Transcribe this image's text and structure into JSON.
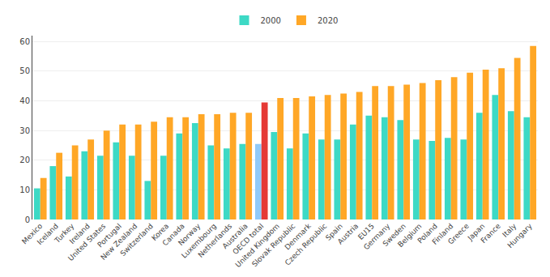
{
  "chart_data": {
    "type": "bar",
    "categories": [
      "Mexico",
      "Iceland",
      "Turkey",
      "Ireland",
      "United States",
      "Portugal",
      "New Zealand",
      "Switzerland",
      "Korea",
      "Canada",
      "Norway",
      "Luxembourg",
      "Netherlands",
      "Australia",
      "OECD total",
      "United Kingdom",
      "Slovak Republic",
      "Denmark",
      "Czech Republic",
      "Spain",
      "Austria",
      "EU15",
      "Germany",
      "Sweden",
      "Belgium",
      "Poland",
      "Finland",
      "Greece",
      "Japan",
      "France",
      "Italy",
      "Hungary"
    ],
    "series": [
      {
        "name": "2000",
        "values": [
          10.5,
          18.0,
          14.5,
          23.0,
          21.5,
          26.0,
          21.5,
          13.0,
          21.5,
          29.0,
          32.5,
          25.0,
          24.0,
          25.5,
          25.5,
          29.5,
          24.0,
          29.0,
          27.0,
          27.0,
          32.0,
          35.0,
          34.5,
          33.5,
          27.0,
          26.5,
          27.5,
          27.0,
          36.0,
          42.0,
          36.5,
          34.5
        ],
        "colors": [
          "#3DD9C5",
          "#3DD9C5",
          "#3DD9C5",
          "#3DD9C5",
          "#3DD9C5",
          "#3DD9C5",
          "#3DD9C5",
          "#3DD9C5",
          "#3DD9C5",
          "#3DD9C5",
          "#3DD9C5",
          "#3DD9C5",
          "#3DD9C5",
          "#3DD9C5",
          "#90CAF9",
          "#3DD9C5",
          "#3DD9C5",
          "#3DD9C5",
          "#3DD9C5",
          "#3DD9C5",
          "#3DD9C5",
          "#3DD9C5",
          "#3DD9C5",
          "#3DD9C5",
          "#3DD9C5",
          "#3DD9C5",
          "#3DD9C5",
          "#3DD9C5",
          "#3DD9C5",
          "#3DD9C5",
          "#3DD9C5",
          "#3DD9C5"
        ]
      },
      {
        "name": "2020",
        "values": [
          14.0,
          22.5,
          25.0,
          27.0,
          30.0,
          32.0,
          32.0,
          33.0,
          34.5,
          34.5,
          35.5,
          35.5,
          36.0,
          36.0,
          39.5,
          41.0,
          41.0,
          41.5,
          42.0,
          42.5,
          43.0,
          45.0,
          45.0,
          45.5,
          46.0,
          47.0,
          48.0,
          49.5,
          50.5,
          51.0,
          54.5,
          58.5
        ],
        "colors": [
          "#FFA726",
          "#FFA726",
          "#FFA726",
          "#FFA726",
          "#FFA726",
          "#FFA726",
          "#FFA726",
          "#FFA726",
          "#FFA726",
          "#FFA726",
          "#FFA726",
          "#FFA726",
          "#FFA726",
          "#FFA726",
          "#E53935",
          "#FFA726",
          "#FFA726",
          "#FFA726",
          "#FFA726",
          "#FFA726",
          "#FFA726",
          "#FFA726",
          "#FFA726",
          "#FFA726",
          "#FFA726",
          "#FFA726",
          "#FFA726",
          "#FFA726",
          "#FFA726",
          "#FFA726",
          "#FFA726",
          "#FFA726"
        ]
      }
    ],
    "ylim": [
      0,
      62
    ],
    "yticks": [
      0,
      10,
      20,
      30,
      40,
      50,
      60
    ],
    "grid": true,
    "legend": "top"
  }
}
